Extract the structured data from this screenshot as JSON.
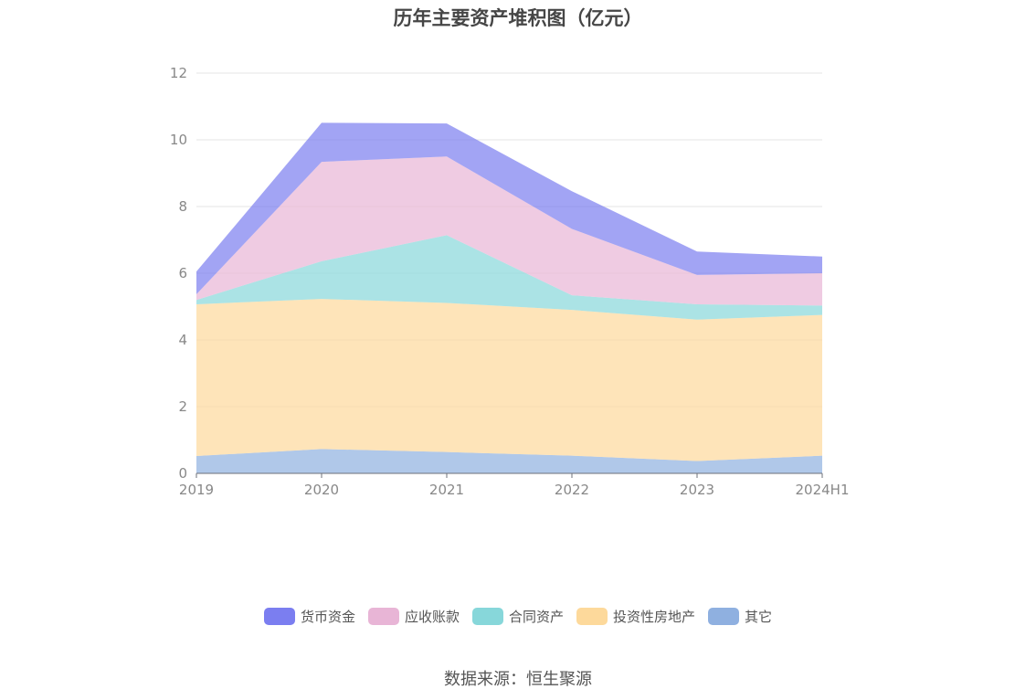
{
  "chart_data": {
    "type": "area",
    "stacked": true,
    "title": "历年主要资产堆积图（亿元）",
    "categories": [
      "2019",
      "2020",
      "2021",
      "2022",
      "2023",
      "2024H1"
    ],
    "yticks": [
      "0",
      "2",
      "4",
      "6",
      "8",
      "10",
      "12"
    ],
    "ylim": [
      0,
      12
    ],
    "grid": true,
    "legend_position": "bottom",
    "series": [
      {
        "name": "其它",
        "color": "#8fb0e0",
        "values": [
          0.52,
          0.73,
          0.64,
          0.53,
          0.37,
          0.53
        ]
      },
      {
        "name": "投资性房地产",
        "color": "#fdd99b",
        "values": [
          4.55,
          4.5,
          4.47,
          4.37,
          4.24,
          4.22
        ]
      },
      {
        "name": "合同资产",
        "color": "#87d7da",
        "values": [
          0.13,
          1.13,
          2.03,
          0.44,
          0.46,
          0.28
        ]
      },
      {
        "name": "应收账款",
        "color": "#e8b5d6",
        "values": [
          0.17,
          2.98,
          2.36,
          1.99,
          0.88,
          0.97
        ]
      },
      {
        "name": "货币资金",
        "color": "#7b7ef0",
        "values": [
          0.68,
          1.17,
          0.99,
          1.13,
          0.7,
          0.5
        ]
      }
    ]
  },
  "source_text": "数据来源：恒生聚源"
}
